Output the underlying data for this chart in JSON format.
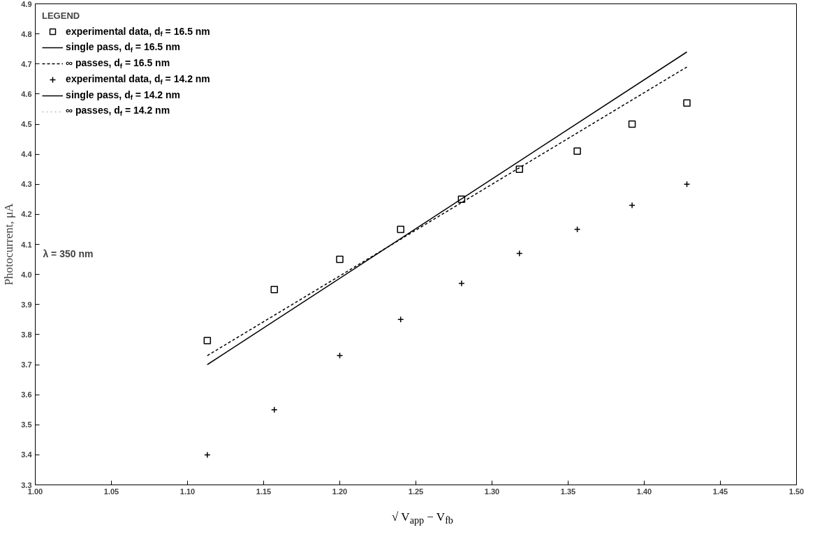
{
  "chart_data": {
    "type": "scatter",
    "xlabel": "√ V$_{app}$ − V$_{fb}$",
    "ylabel": "Photocurrent, μA",
    "legend_title": "LEGEND",
    "legend": "top left",
    "grid": false,
    "xlim": [
      1.0,
      1.5
    ],
    "ylim": [
      3.3,
      4.9
    ],
    "xticks": [
      {
        "value": 1.0,
        "label": "1.00"
      },
      {
        "value": 1.05,
        "label": "1.05"
      },
      {
        "value": 1.1,
        "label": "1.10"
      },
      {
        "value": 1.15,
        "label": "1.15"
      },
      {
        "value": 1.2,
        "label": "1.20"
      },
      {
        "value": 1.25,
        "label": "1.25"
      },
      {
        "value": 1.3,
        "label": "1.30"
      },
      {
        "value": 1.35,
        "label": "1.35"
      },
      {
        "value": 1.4,
        "label": "1.40"
      },
      {
        "value": 1.45,
        "label": "1.45"
      },
      {
        "value": 1.5,
        "label": "1.50"
      }
    ],
    "yticks": [
      3.3,
      3.4,
      3.5,
      3.6,
      3.7,
      3.8,
      3.9,
      {
        "value": 4.0,
        "label": "4.0"
      },
      4.1,
      4.2,
      4.3,
      4.4,
      4.5,
      4.6,
      4.7,
      4.8,
      4.9
    ],
    "annotations": [
      "λ = 350 nm"
    ],
    "series": [
      {
        "name": "experimental data, d$_{f}$ = 16.5 nm",
        "marker": "square",
        "color": "#000000",
        "x": [
          1.113,
          1.157,
          1.2,
          1.24,
          1.28,
          1.318,
          1.356,
          1.392,
          1.428
        ],
        "values": [
          3.78,
          3.95,
          4.05,
          4.15,
          4.25,
          4.35,
          4.41,
          4.5,
          4.57
        ]
      },
      {
        "name": "single pass, d$_{f}$ = 16.5 nm",
        "type": "line",
        "marker": "none",
        "line_style": "solid",
        "color": "#000000",
        "x": [
          1.113,
          1.428
        ],
        "values": [
          3.7,
          4.74
        ]
      },
      {
        "name": "∞ passes, d$_{f}$ = 16.5 nm",
        "type": "line",
        "marker": "none",
        "line_style": "dashed",
        "color": "#000000",
        "x": [
          1.113,
          1.428
        ],
        "values": [
          3.73,
          4.69
        ]
      },
      {
        "name": "experimental data, d$_{f}$ = 14.2 nm",
        "marker": "cross",
        "color": "#000000",
        "x": [
          1.113,
          1.157,
          1.2,
          1.24,
          1.28,
          1.318,
          1.356,
          1.392,
          1.428
        ],
        "values": [
          3.4,
          3.55,
          3.73,
          3.85,
          3.97,
          4.07,
          4.15,
          4.23,
          4.3
        ]
      },
      {
        "name": "single pass, d$_{f}$ = 14.2 nm",
        "type": "line",
        "marker": "none",
        "line_style": "solid",
        "color": "#000000",
        "values": [
          null,
          null
        ]
      },
      {
        "name": "∞ passes, d$_{f}$ = 14.2 nm",
        "type": "line",
        "marker": "none",
        "line_style": "dotted",
        "color": "#bbbbbb",
        "values": [
          null,
          null
        ]
      }
    ]
  }
}
